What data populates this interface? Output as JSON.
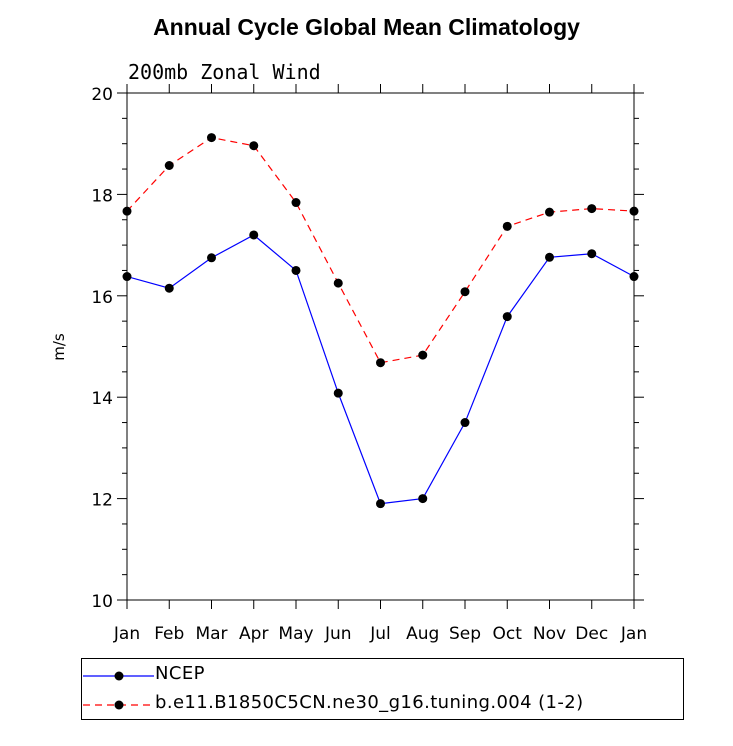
{
  "title": "Annual Cycle Global Mean Climatology",
  "chart_data": {
    "type": "line",
    "subtitle": "200mb Zonal Wind",
    "ylabel": "m/s",
    "xlabel": "",
    "ylim": [
      10,
      20
    ],
    "yticks": [
      "10",
      "12",
      "14",
      "16",
      "18",
      "20"
    ],
    "categories": [
      "Jan",
      "Feb",
      "Mar",
      "Apr",
      "May",
      "Jun",
      "Jul",
      "Aug",
      "Sep",
      "Oct",
      "Nov",
      "Dec",
      "Jan"
    ],
    "series": [
      {
        "name": "NCEP",
        "color": "#0000ff",
        "dash": "solid",
        "values": [
          16.38,
          16.15,
          16.75,
          17.2,
          16.5,
          14.08,
          11.9,
          12.0,
          13.5,
          15.59,
          16.76,
          16.83,
          16.38
        ]
      },
      {
        "name": "b.e11.B1850C5CN.ne30_g16.tuning.004 (1-2)",
        "color": "#ff0000",
        "dash": "dashed",
        "values": [
          17.67,
          18.57,
          19.12,
          18.96,
          17.84,
          16.25,
          14.68,
          14.83,
          16.08,
          17.37,
          17.65,
          17.72,
          17.67
        ]
      }
    ],
    "legend_position": "bottom"
  }
}
